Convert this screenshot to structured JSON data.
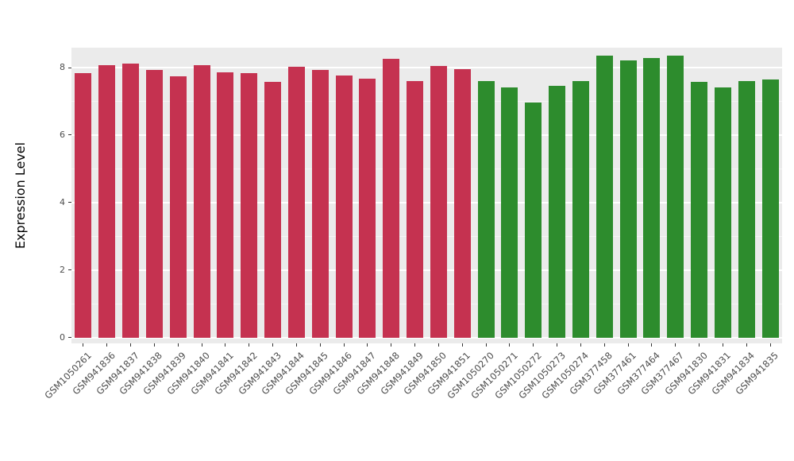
{
  "chart_data": {
    "type": "bar",
    "title": "",
    "xlabel": "",
    "ylabel": "Expression Level",
    "ylim": [
      -0.17,
      8.59
    ],
    "yticks": [
      0,
      2,
      4,
      6,
      8
    ],
    "yticks_minor": [
      1,
      3,
      5,
      7
    ],
    "grid": true,
    "legend": "none",
    "panel_bg": "#EBEBEB",
    "grid_color": "#FFFFFF",
    "group_colors": {
      "group1": "#C53250",
      "group2": "#2D8C2D"
    },
    "bars": [
      {
        "label": "GSM1050261",
        "value": 7.84,
        "group": "group1"
      },
      {
        "label": "GSM941836",
        "value": 8.07,
        "group": "group1"
      },
      {
        "label": "GSM941837",
        "value": 8.12,
        "group": "group1"
      },
      {
        "label": "GSM941838",
        "value": 7.93,
        "group": "group1"
      },
      {
        "label": "GSM941839",
        "value": 7.74,
        "group": "group1"
      },
      {
        "label": "GSM941840",
        "value": 8.08,
        "group": "group1"
      },
      {
        "label": "GSM941841",
        "value": 7.86,
        "group": "group1"
      },
      {
        "label": "GSM941842",
        "value": 7.84,
        "group": "group1"
      },
      {
        "label": "GSM941843",
        "value": 7.57,
        "group": "group1"
      },
      {
        "label": "GSM941844",
        "value": 8.02,
        "group": "group1"
      },
      {
        "label": "GSM941845",
        "value": 7.93,
        "group": "group1"
      },
      {
        "label": "GSM941846",
        "value": 7.77,
        "group": "group1"
      },
      {
        "label": "GSM941847",
        "value": 7.67,
        "group": "group1"
      },
      {
        "label": "GSM941848",
        "value": 8.26,
        "group": "group1"
      },
      {
        "label": "GSM941849",
        "value": 7.61,
        "group": "group1"
      },
      {
        "label": "GSM941850",
        "value": 8.06,
        "group": "group1"
      },
      {
        "label": "GSM941851",
        "value": 7.95,
        "group": "group1"
      },
      {
        "label": "GSM1050270",
        "value": 7.6,
        "group": "group2"
      },
      {
        "label": "GSM1050271",
        "value": 7.41,
        "group": "group2"
      },
      {
        "label": "GSM1050272",
        "value": 6.96,
        "group": "group2"
      },
      {
        "label": "GSM1050273",
        "value": 7.46,
        "group": "group2"
      },
      {
        "label": "GSM1050274",
        "value": 7.6,
        "group": "group2"
      },
      {
        "label": "GSM377458",
        "value": 8.35,
        "group": "group2"
      },
      {
        "label": "GSM377461",
        "value": 8.21,
        "group": "group2"
      },
      {
        "label": "GSM377464",
        "value": 8.29,
        "group": "group2"
      },
      {
        "label": "GSM377467",
        "value": 8.35,
        "group": "group2"
      },
      {
        "label": "GSM941830",
        "value": 7.57,
        "group": "group2"
      },
      {
        "label": "GSM941831",
        "value": 7.41,
        "group": "group2"
      },
      {
        "label": "GSM941834",
        "value": 7.61,
        "group": "group2"
      },
      {
        "label": "GSM941835",
        "value": 7.64,
        "group": "group2"
      }
    ]
  }
}
